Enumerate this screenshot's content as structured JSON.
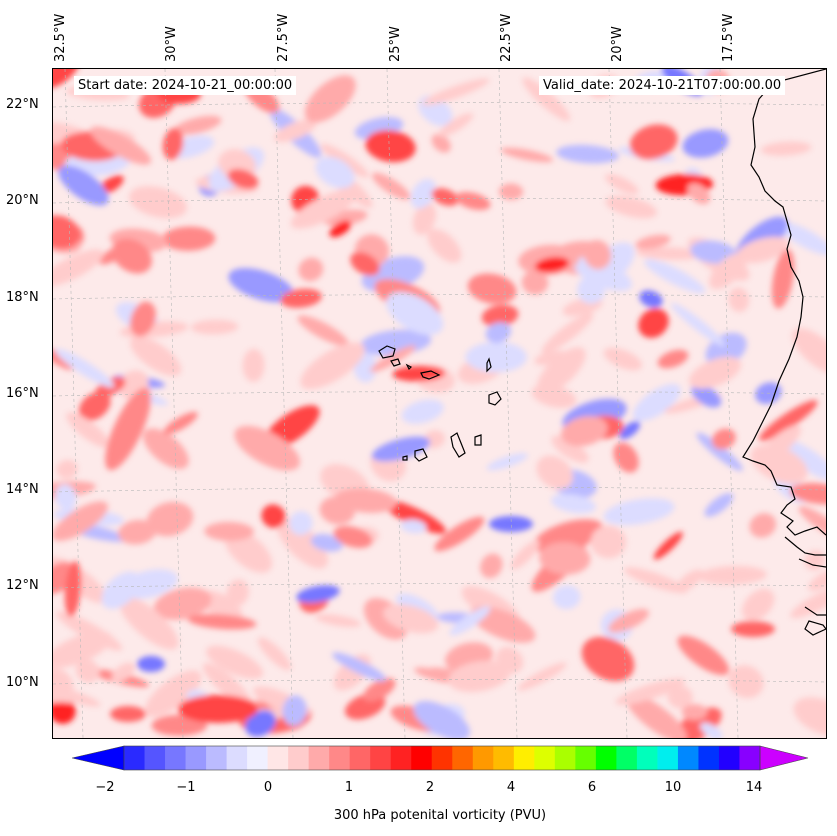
{
  "map": {
    "start_date": "Start date: 2024-10-21_00:00:00",
    "valid_date": "Valid_date: 2024-10-21T07:00:00.00",
    "lon_labels": [
      "32.5°W",
      "30°W",
      "27.5°W",
      "25°W",
      "22.5°W",
      "20°W",
      "17.5°W"
    ],
    "lat_labels": [
      "22°N",
      "20°N",
      "18°N",
      "16°N",
      "14°N",
      "12°N",
      "10°N"
    ],
    "gridlines": true,
    "coastlines": true
  },
  "colorbar": {
    "label": "300 hPa potenital vorticity (PVU)",
    "ticks": [
      "−2",
      "−1",
      "0",
      "1",
      "2",
      "4",
      "6",
      "10",
      "14"
    ],
    "colors": [
      "#0000ff",
      "#2a2aff",
      "#5555ff",
      "#7777ff",
      "#9999ff",
      "#bbbbff",
      "#dcdcff",
      "#f0f0ff",
      "#ffe6e6",
      "#ffcccc",
      "#ffaaaa",
      "#ff8888",
      "#ff6666",
      "#ff4444",
      "#ff2222",
      "#ff0000",
      "#ff3300",
      "#ff6600",
      "#ff9900",
      "#ffbb00",
      "#ffee00",
      "#ddff00",
      "#aaff00",
      "#66ff00",
      "#00ff00",
      "#00ff66",
      "#00ffbb",
      "#00eeee",
      "#0088ff",
      "#0033ff",
      "#2200ff",
      "#8800ff",
      "#cc00ff"
    ],
    "extend": "both"
  }
}
